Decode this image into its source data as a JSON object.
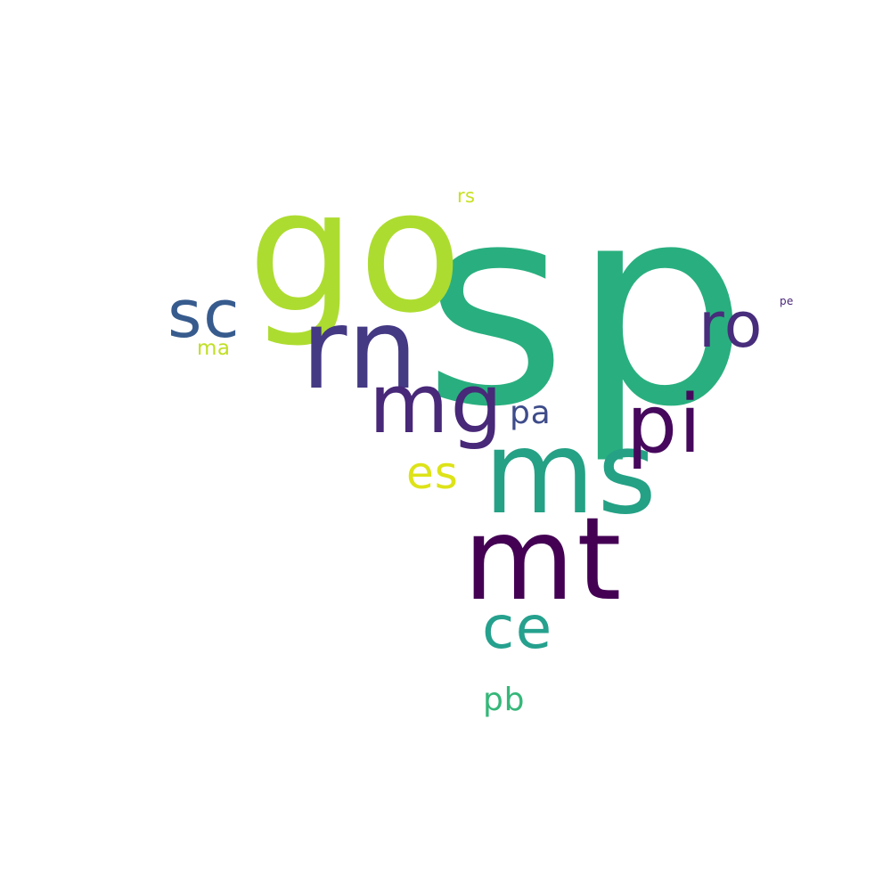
{
  "word_cloud": {
    "words": [
      {
        "text": "sp",
        "color": "#29af7f"
      },
      {
        "text": "go",
        "color": "#addc30"
      },
      {
        "text": "rn",
        "color": "#443983"
      },
      {
        "text": "ms",
        "color": "#25a185"
      },
      {
        "text": "mt",
        "color": "#440154"
      },
      {
        "text": "mg",
        "color": "#482878"
      },
      {
        "text": "pi",
        "color": "#46085c"
      },
      {
        "text": "ro",
        "color": "#472d7b"
      },
      {
        "text": "sc",
        "color": "#375b8d"
      },
      {
        "text": "ce",
        "color": "#25a18e"
      },
      {
        "text": "es",
        "color": "#dde318"
      },
      {
        "text": "pa",
        "color": "#3e4c8a"
      },
      {
        "text": "pb",
        "color": "#35b779"
      },
      {
        "text": "ma",
        "color": "#c0df25"
      },
      {
        "text": "rs",
        "color": "#c8e020"
      },
      {
        "text": "pe",
        "color": "#482475"
      }
    ]
  }
}
